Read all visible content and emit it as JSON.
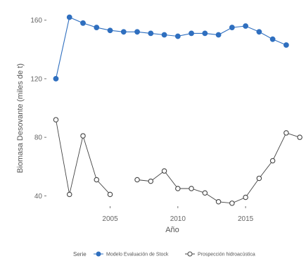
{
  "chart_data": {
    "type": "line",
    "title": "",
    "xlabel": "Año",
    "ylabel": "Biomasa Desovante (miles de t)",
    "xlim": [
      2000.3,
      2019.2
    ],
    "ylim": [
      33,
      168
    ],
    "x_ticks": [
      2005,
      2010,
      2015
    ],
    "y_ticks": [
      40,
      80,
      120,
      160
    ],
    "grid": false,
    "legend": {
      "position": "bottom",
      "title": "Serie"
    },
    "series": [
      {
        "name": "Modelo Evaluación de Stock",
        "color": "#2f6fbf",
        "marker": "filled-circle",
        "x": [
          2001,
          2002,
          2003,
          2004,
          2005,
          2006,
          2007,
          2008,
          2009,
          2010,
          2011,
          2012,
          2013,
          2014,
          2015,
          2016,
          2017,
          2018
        ],
        "y": [
          120,
          162,
          158,
          155,
          153,
          152,
          152,
          151,
          150,
          149,
          151,
          151,
          150,
          155,
          156,
          152,
          147,
          143
        ]
      },
      {
        "name": "Prospección hidroacústica",
        "color": "#444444",
        "marker": "open-circle",
        "x": [
          2001,
          2002,
          2003,
          2004,
          2005,
          2006,
          2007,
          2008,
          2009,
          2010,
          2011,
          2012,
          2013,
          2014,
          2015,
          2016,
          2017,
          2018,
          2019
        ],
        "y": [
          92,
          41,
          81,
          51,
          41,
          null,
          51,
          50,
          57,
          45,
          45,
          42,
          36,
          35,
          39,
          52,
          64,
          83,
          80
        ]
      }
    ]
  }
}
